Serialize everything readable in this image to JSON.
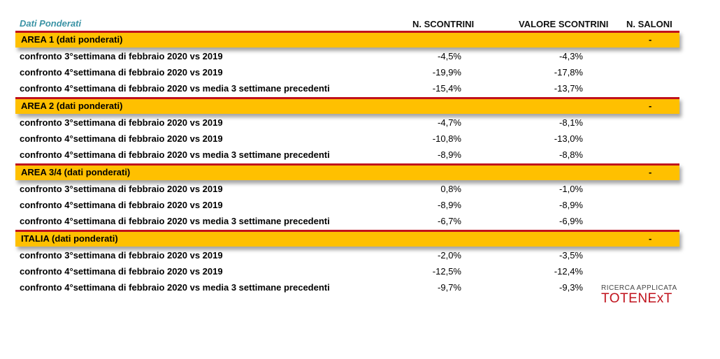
{
  "header": {
    "title": "Dati Ponderati",
    "col_scontrini": "N. SCONTRINI",
    "col_valore": "VALORE SCONTRINI",
    "col_saloni": "N. SALONI"
  },
  "sections": [
    {
      "label": "AREA 1 (dati ponderati)",
      "saloni": "-",
      "rows": [
        {
          "label": "confronto 3°settimana di febbraio 2020 vs 2019",
          "scontrini": "-4,5%",
          "valore": "-4,3%"
        },
        {
          "label": "confronto 4°settimana di febbraio 2020 vs 2019",
          "scontrini": "-19,9%",
          "valore": "-17,8%"
        },
        {
          "label": "confronto 4°settimana di febbraio 2020 vs media 3 settimane precedenti",
          "scontrini": "-15,4%",
          "valore": "-13,7%"
        }
      ]
    },
    {
      "label": "AREA 2 (dati ponderati)",
      "saloni": "-",
      "rows": [
        {
          "label": "confronto 3°settimana di febbraio 2020 vs 2019",
          "scontrini": "-4,7%",
          "valore": "-8,1%"
        },
        {
          "label": "confronto 4°settimana di febbraio 2020 vs 2019",
          "scontrini": "-10,8%",
          "valore": "-13,0%"
        },
        {
          "label": "confronto 4°settimana di febbraio 2020 vs media 3 settimane precedenti",
          "scontrini": "-8,9%",
          "valore": "-8,8%"
        }
      ]
    },
    {
      "label": "AREA 3/4 (dati ponderati)",
      "saloni": "-",
      "rows": [
        {
          "label": "confronto 3°settimana di febbraio 2020 vs 2019",
          "scontrini": "0,8%",
          "valore": "-1,0%"
        },
        {
          "label": "confronto 4°settimana di febbraio 2020 vs 2019",
          "scontrini": "-8,9%",
          "valore": "-8,9%"
        },
        {
          "label": "confronto 4°settimana di febbraio 2020 vs media 3 settimane precedenti",
          "scontrini": "-6,7%",
          "valore": "-6,9%"
        }
      ]
    },
    {
      "label": "ITALIA (dati ponderati)",
      "saloni": "-",
      "rows": [
        {
          "label": "confronto 3°settimana di febbraio 2020 vs 2019",
          "scontrini": "-2,0%",
          "valore": "-3,5%"
        },
        {
          "label": "confronto 4°settimana di febbraio 2020 vs 2019",
          "scontrini": "-12,5%",
          "valore": "-12,4%"
        },
        {
          "label": "confronto 4°settimana di febbraio 2020 vs media 3 settimane precedenti",
          "scontrini": "-9,7%",
          "valore": "-9,3%"
        }
      ]
    }
  ],
  "logo": {
    "line1": "RICERCA APPLICATA",
    "line2": "TOTENExT"
  },
  "colors": {
    "band": "#ffc000",
    "band_border": "#c0121c",
    "title": "#3a93a5",
    "logo_accent": "#c0121c"
  }
}
